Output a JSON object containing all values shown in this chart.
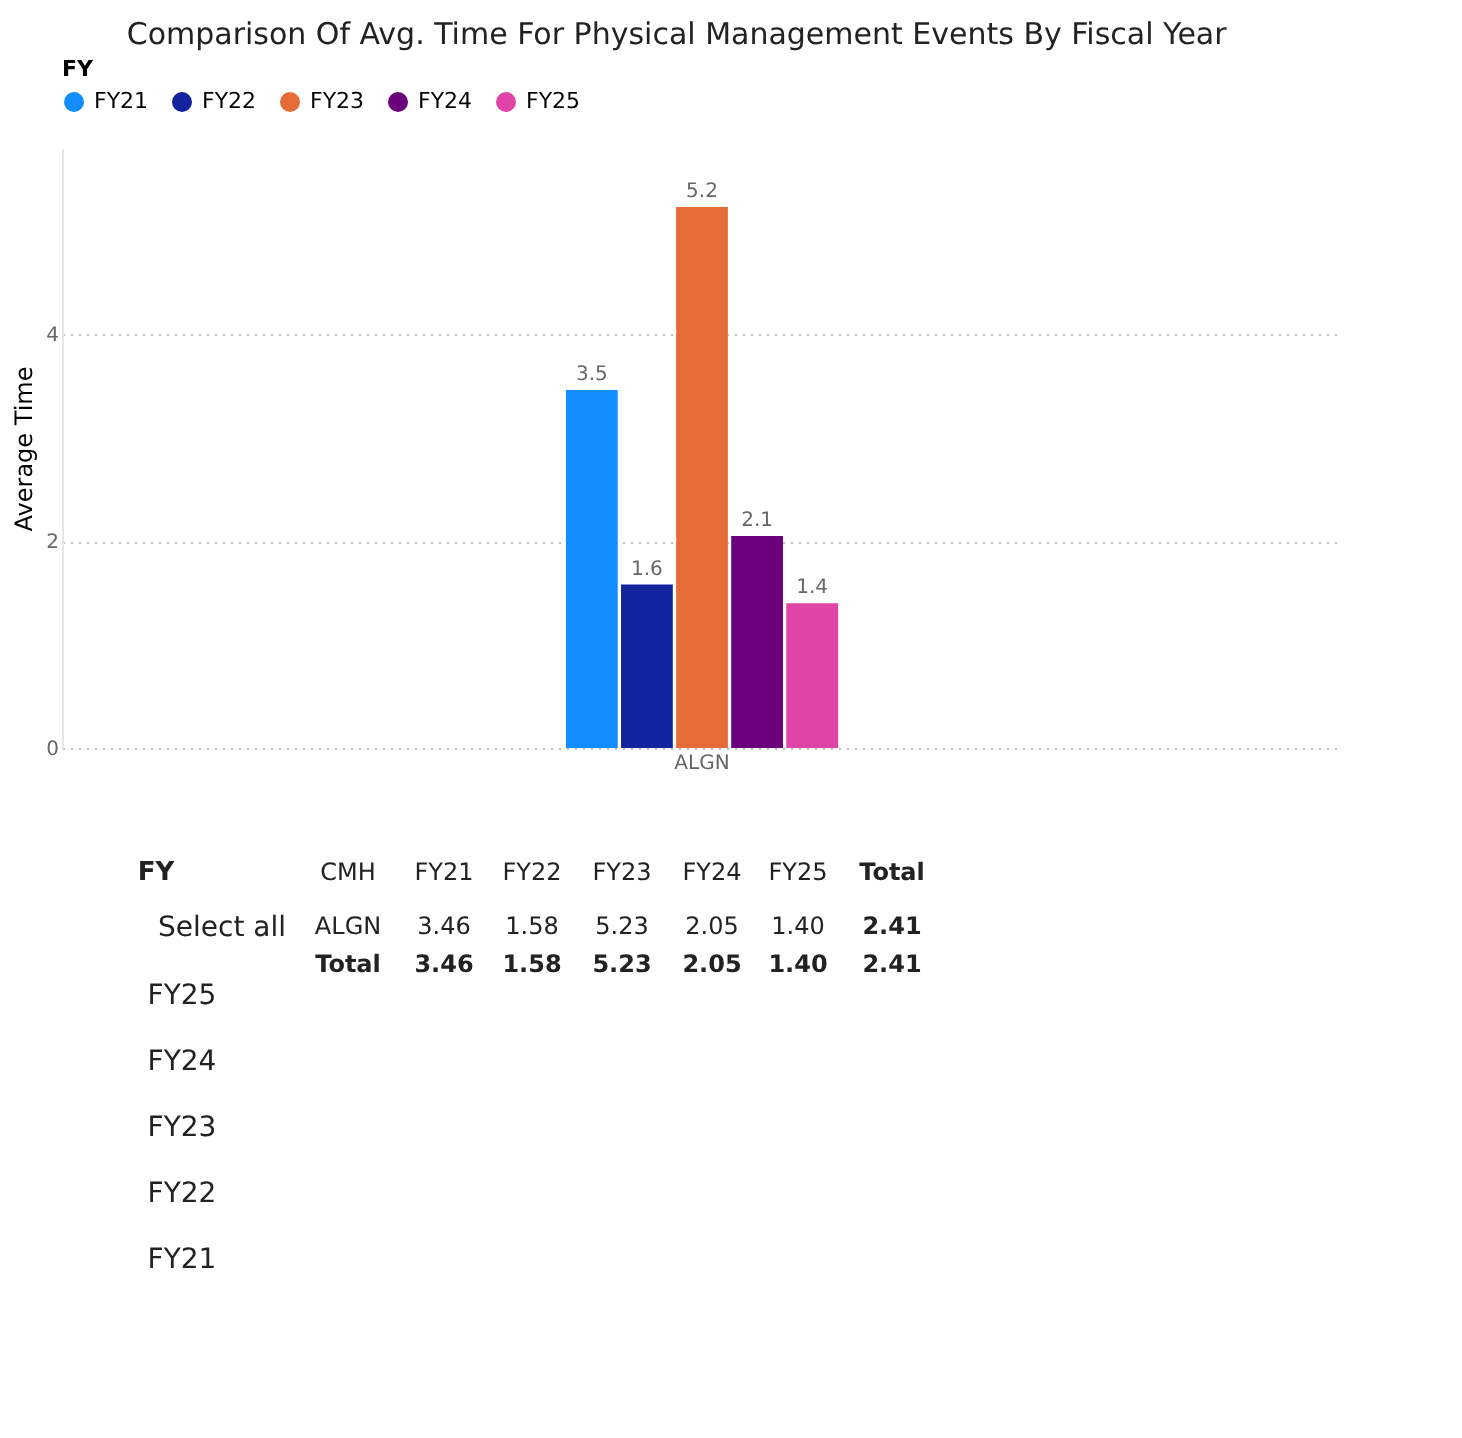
{
  "chart_data": {
    "type": "bar",
    "title": "Comparison Of Avg. Time For Physical Management Events By Fiscal Year",
    "ylabel": "Average Time",
    "legend_title": "FY",
    "legend": "top",
    "grid": "y",
    "categories": [
      "ALGN"
    ],
    "series": [
      {
        "name": "FY21",
        "color": "#118dff",
        "values": [
          3.46
        ],
        "value_labels": [
          "3.5"
        ]
      },
      {
        "name": "FY22",
        "color": "#12239e",
        "values": [
          1.58
        ],
        "value_labels": [
          "1.6"
        ]
      },
      {
        "name": "FY23",
        "color": "#e66c37",
        "values": [
          5.23
        ],
        "value_labels": [
          "5.2"
        ]
      },
      {
        "name": "FY24",
        "color": "#6b007b",
        "values": [
          2.05
        ],
        "value_labels": [
          "2.1"
        ]
      },
      {
        "name": "FY25",
        "color": "#e044a7",
        "values": [
          1.4
        ],
        "value_labels": [
          "1.4"
        ]
      }
    ],
    "ylim": [
      0,
      5.8
    ],
    "yticks": [
      0,
      2,
      4
    ],
    "annotations": [
      "CMH",
      "Total",
      "3.46",
      "1.58",
      "5.23",
      "2.05",
      "1.40",
      "2.41",
      "Total",
      "3.46",
      "1.58",
      "5.23",
      "2.05",
      "1.40",
      "2.41",
      "FY",
      "Select all"
    ]
  }
}
